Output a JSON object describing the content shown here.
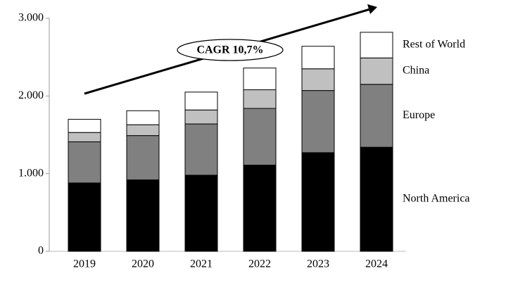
{
  "chart_data": {
    "type": "stacked_bar",
    "categories": [
      "2019",
      "2020",
      "2021",
      "2022",
      "2023",
      "2024"
    ],
    "series": [
      {
        "name": "North America",
        "color": "#000000",
        "values": [
          880,
          920,
          980,
          1110,
          1270,
          1340
        ]
      },
      {
        "name": "Europe",
        "color": "#808080",
        "values": [
          530,
          570,
          660,
          730,
          800,
          810
        ]
      },
      {
        "name": "China",
        "color": "#c0c0c0",
        "values": [
          120,
          140,
          180,
          240,
          280,
          340
        ]
      },
      {
        "name": "Rest of World",
        "color": "#ffffff",
        "values": [
          170,
          180,
          230,
          280,
          290,
          330
        ]
      }
    ],
    "ylim": [
      0,
      3000
    ],
    "yticks": [
      0,
      {
        "value": 1000,
        "label": "1.000"
      },
      {
        "value": 2000,
        "label": "2.000"
      },
      {
        "value": 3000,
        "label": "3.000"
      }
    ],
    "annotation": "CAGR 10,7%",
    "grid": false
  }
}
